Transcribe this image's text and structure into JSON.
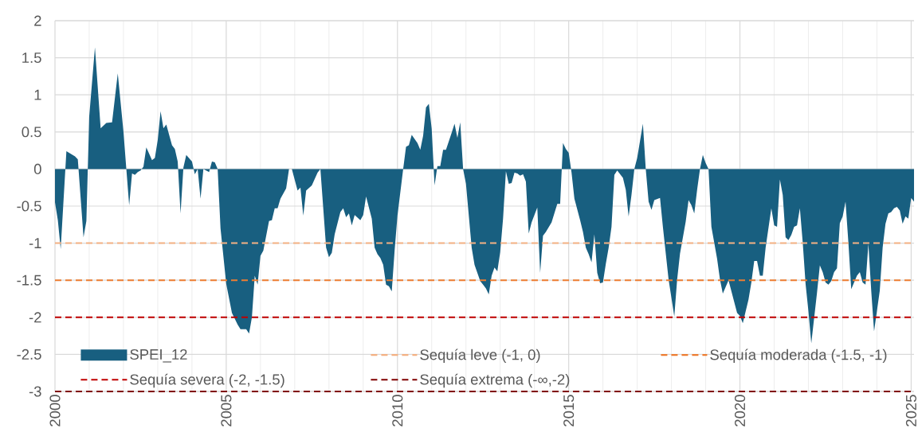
{
  "chart_data": {
    "type": "area",
    "x": [
      "2000-01",
      "2000-02",
      "2000-03",
      "2000-05",
      "2000-08",
      "2000-09",
      "2000-11",
      "2000-12",
      "2001-01",
      "2001-03",
      "2001-05",
      "2001-07",
      "2001-09",
      "2001-11",
      "2002-01",
      "2002-02",
      "2002-03",
      "2002-04",
      "2002-05",
      "2002-06",
      "2002-07",
      "2002-08",
      "2002-09",
      "2002-11",
      "2002-12",
      "2003-01",
      "2003-02",
      "2003-03",
      "2003-04",
      "2003-06",
      "2003-07",
      "2003-08",
      "2003-09",
      "2003-10",
      "2003-11",
      "2004-01",
      "2004-02",
      "2004-03",
      "2004-04",
      "2004-05",
      "2004-07",
      "2004-08",
      "2004-09",
      "2004-10",
      "2004-11",
      "2005-01",
      "2005-03",
      "2005-05",
      "2005-06",
      "2005-08",
      "2005-09",
      "2005-10",
      "2005-11",
      "2005-12",
      "2006-01",
      "2006-02",
      "2006-04",
      "2006-05",
      "2006-06",
      "2006-07",
      "2006-08",
      "2006-10",
      "2006-11",
      "2006-12",
      "2007-02",
      "2007-03",
      "2007-04",
      "2007-05",
      "2007-07",
      "2007-09",
      "2007-10",
      "2007-12",
      "2008-01",
      "2008-02",
      "2008-03",
      "2008-05",
      "2008-06",
      "2008-07",
      "2008-08",
      "2008-09",
      "2008-10",
      "2008-12",
      "2009-01",
      "2009-02",
      "2009-04",
      "2009-05",
      "2009-06",
      "2009-07",
      "2009-08",
      "2009-09",
      "2009-10",
      "2009-11",
      "2009-12",
      "2010-01",
      "2010-03",
      "2010-04",
      "2010-05",
      "2010-06",
      "2010-08",
      "2010-09",
      "2010-10",
      "2010-11",
      "2010-12",
      "2011-01",
      "2011-02",
      "2011-03",
      "2011-04",
      "2011-05",
      "2011-06",
      "2011-08",
      "2011-09",
      "2011-10",
      "2011-11",
      "2011-12",
      "2012-01",
      "2012-03",
      "2012-04",
      "2012-06",
      "2012-07",
      "2012-08",
      "2012-09",
      "2012-10",
      "2012-11",
      "2012-12",
      "2013-01",
      "2013-02",
      "2013-03",
      "2013-04",
      "2013-05",
      "2013-06",
      "2013-07",
      "2013-08",
      "2013-09",
      "2013-10",
      "2013-11",
      "2013-12",
      "2014-02",
      "2014-03",
      "2014-04",
      "2014-05",
      "2014-07",
      "2014-09",
      "2014-10",
      "2014-11",
      "2014-12",
      "2015-01",
      "2015-02",
      "2015-03",
      "2015-05",
      "2015-06",
      "2015-07",
      "2015-08",
      "2015-09",
      "2015-10",
      "2015-11",
      "2015-12",
      "2016-01",
      "2016-02",
      "2016-03",
      "2016-04",
      "2016-05",
      "2016-06",
      "2016-08",
      "2016-09",
      "2016-10",
      "2016-11",
      "2016-12",
      "2017-01",
      "2017-03",
      "2017-04",
      "2017-05",
      "2017-06",
      "2017-07",
      "2017-09",
      "2017-10",
      "2017-12",
      "2018-02",
      "2018-03",
      "2018-04",
      "2018-06",
      "2018-07",
      "2018-08",
      "2018-09",
      "2018-10",
      "2018-11",
      "2018-12",
      "2019-01",
      "2019-02",
      "2019-03",
      "2019-05",
      "2019-06",
      "2019-07",
      "2019-09",
      "2019-12",
      "2020-01",
      "2020-02",
      "2020-04",
      "2020-05",
      "2020-06",
      "2020-07",
      "2020-08",
      "2020-09",
      "2020-10",
      "2020-12",
      "2021-01",
      "2021-02",
      "2021-03",
      "2021-04",
      "2021-05",
      "2021-06",
      "2021-07",
      "2021-08",
      "2021-09",
      "2021-10",
      "2021-11",
      "2021-12",
      "2022-01",
      "2022-02",
      "2022-04",
      "2022-05",
      "2022-06",
      "2022-07",
      "2022-08",
      "2022-09",
      "2022-10",
      "2022-11",
      "2022-12",
      "2023-01",
      "2023-02",
      "2023-03",
      "2023-04",
      "2023-06",
      "2023-07",
      "2023-08",
      "2023-09",
      "2023-10",
      "2023-11",
      "2023-12",
      "2024-02",
      "2024-03",
      "2024-04",
      "2024-05",
      "2024-06",
      "2024-07",
      "2024-08",
      "2024-09",
      "2024-10",
      "2024-11",
      "2024-12",
      "2025-01",
      "2025-02"
    ],
    "series": [
      {
        "name": "SPEI_12",
        "color": "#185f80",
        "values": [
          -0.45,
          -0.69,
          -1.08,
          0.24,
          0.17,
          0.13,
          -0.92,
          -0.7,
          0.71,
          1.64,
          0.55,
          0.62,
          0.63,
          1.29,
          0.5,
          0,
          -0.49,
          -0.06,
          -0.08,
          -0.04,
          -0.02,
          0.03,
          0.29,
          0.12,
          0.15,
          0.39,
          0.78,
          0.55,
          0.6,
          0.32,
          0.27,
          0.1,
          -0.6,
          0.02,
          0.19,
          0.1,
          -0.07,
          0,
          -0.4,
          0,
          -0.04,
          0.1,
          0.09,
          0,
          -0.8,
          -1.55,
          -1.94,
          -2.1,
          -2.16,
          -2.16,
          -2.22,
          -2.0,
          -1.44,
          -1.56,
          -1.17,
          -1.1,
          -0.7,
          -0.69,
          -0.53,
          -0.53,
          -0.4,
          -0.26,
          0,
          0,
          -0.29,
          -0.25,
          -0.63,
          -0.29,
          -0.22,
          -0.05,
          0,
          -1.06,
          -1.19,
          -1.13,
          -0.88,
          -0.58,
          -0.53,
          -0.65,
          -0.6,
          -0.76,
          -0.62,
          -0.69,
          -0.62,
          -0.37,
          -0.67,
          -1.06,
          -1.15,
          -1.2,
          -1.29,
          -1.56,
          -1.58,
          -1.65,
          -1.1,
          -0.63,
          0,
          0.3,
          0.32,
          0.46,
          0.35,
          0.26,
          0.45,
          0.83,
          0.88,
          0.54,
          -0.22,
          0.04,
          0.04,
          0.26,
          0.26,
          0.49,
          0.61,
          0.42,
          0.63,
          0,
          -0.2,
          -1.06,
          -1.29,
          -1.51,
          -1.56,
          -1.61,
          -1.69,
          -1.44,
          -1.33,
          -1.38,
          -1.12,
          -0.67,
          -0.03,
          -0.2,
          -0.19,
          -0.05,
          -0.06,
          -0.09,
          -0.07,
          -0.17,
          -0.87,
          -0.72,
          -0.52,
          -1.4,
          -0.9,
          -0.85,
          -0.72,
          -0.47,
          -0.47,
          0.35,
          0.27,
          0.22,
          -0.05,
          -0.4,
          -0.69,
          -0.85,
          -1.06,
          -1.15,
          -1.26,
          -0.88,
          -1.4,
          -1.54,
          -1.53,
          -1.28,
          -1.06,
          -0.78,
          -0.08,
          -0.02,
          -0.12,
          -0.28,
          -0.64,
          -0.35,
          0,
          0.15,
          0.61,
          0,
          -0.44,
          -0.55,
          -0.42,
          -0.39,
          -0.78,
          -1.49,
          -1.99,
          -1.49,
          -1.14,
          -0.71,
          -0.42,
          -0.49,
          -0.6,
          -0.28,
          0,
          0.19,
          0.08,
          0,
          -0.78,
          -1.21,
          -1.49,
          -1.68,
          -1.5,
          -1.94,
          -1.98,
          -2.08,
          -1.76,
          -1.53,
          -1.24,
          -1.24,
          -1.44,
          -1.44,
          -1.06,
          -0.53,
          -0.76,
          -0.78,
          -0.14,
          -0.35,
          -0.92,
          -0.96,
          -0.89,
          -0.78,
          -0.76,
          -0.53,
          -0.99,
          -1.55,
          -1.92,
          -2.35,
          -1.67,
          -1.3,
          -1.39,
          -1.53,
          -1.56,
          -1.51,
          -1.39,
          -1.34,
          -0.73,
          -0.64,
          -0.44,
          -0.99,
          -1.62,
          -1.44,
          -1.39,
          -1.53,
          -1.56,
          -1.01,
          -1.64,
          -2.19,
          -1.64,
          -1.06,
          -0.74,
          -0.6,
          -0.58,
          -0.53,
          -0.51,
          -0.56,
          -0.74,
          -0.64,
          -0.67,
          -0.39,
          -0.44
        ]
      }
    ],
    "xlim": [
      "2000-01",
      "2025-02"
    ],
    "ylim": [
      -3,
      2
    ],
    "xticks": [
      "2000",
      {
        "value": "2001",
        "label": null
      },
      {
        "value": "2002",
        "label": null
      },
      {
        "value": "2003",
        "label": null
      },
      {
        "value": "2004",
        "label": null
      },
      "2005",
      {
        "value": "2006",
        "label": null
      },
      {
        "value": "2007",
        "label": null
      },
      {
        "value": "2008",
        "label": null
      },
      {
        "value": "2009",
        "label": null
      },
      "2010",
      {
        "value": "2011",
        "label": null
      },
      {
        "value": "2012",
        "label": null
      },
      {
        "value": "2013",
        "label": null
      },
      {
        "value": "2014",
        "label": null
      },
      "2015",
      {
        "value": "2016",
        "label": null
      },
      {
        "value": "2017",
        "label": null
      },
      {
        "value": "2018",
        "label": null
      },
      {
        "value": "2019",
        "label": null
      },
      "2020",
      {
        "value": "2021",
        "label": null
      },
      {
        "value": "2022",
        "label": null
      },
      {
        "value": "2023",
        "label": null
      },
      {
        "value": "2024",
        "label": null
      },
      "2025"
    ],
    "yticks": [
      -3,
      -2.5,
      -2,
      -1.5,
      -1,
      -0.5,
      0,
      0.5,
      1,
      1.5,
      2
    ],
    "ref_lines": [
      {
        "axis": "y",
        "value": -1,
        "label": "Sequía leve (-1, 0)",
        "color": "#f4b183",
        "line_style": "dashed"
      },
      {
        "axis": "y",
        "value": -1.5,
        "label": "Sequía moderada (-1.5, -1)",
        "color": "#ed7d31",
        "line_style": "dashed"
      },
      {
        "axis": "y",
        "value": -2,
        "label": "Sequía severa (-2, -1.5)",
        "color": "#c00000",
        "line_style": "dashed"
      },
      {
        "axis": "y",
        "value": -3,
        "label": "Sequía extrema (-∞,-2)",
        "color": "#800000",
        "line_style": "dashed"
      }
    ],
    "grid": true,
    "legend": "bottom"
  }
}
